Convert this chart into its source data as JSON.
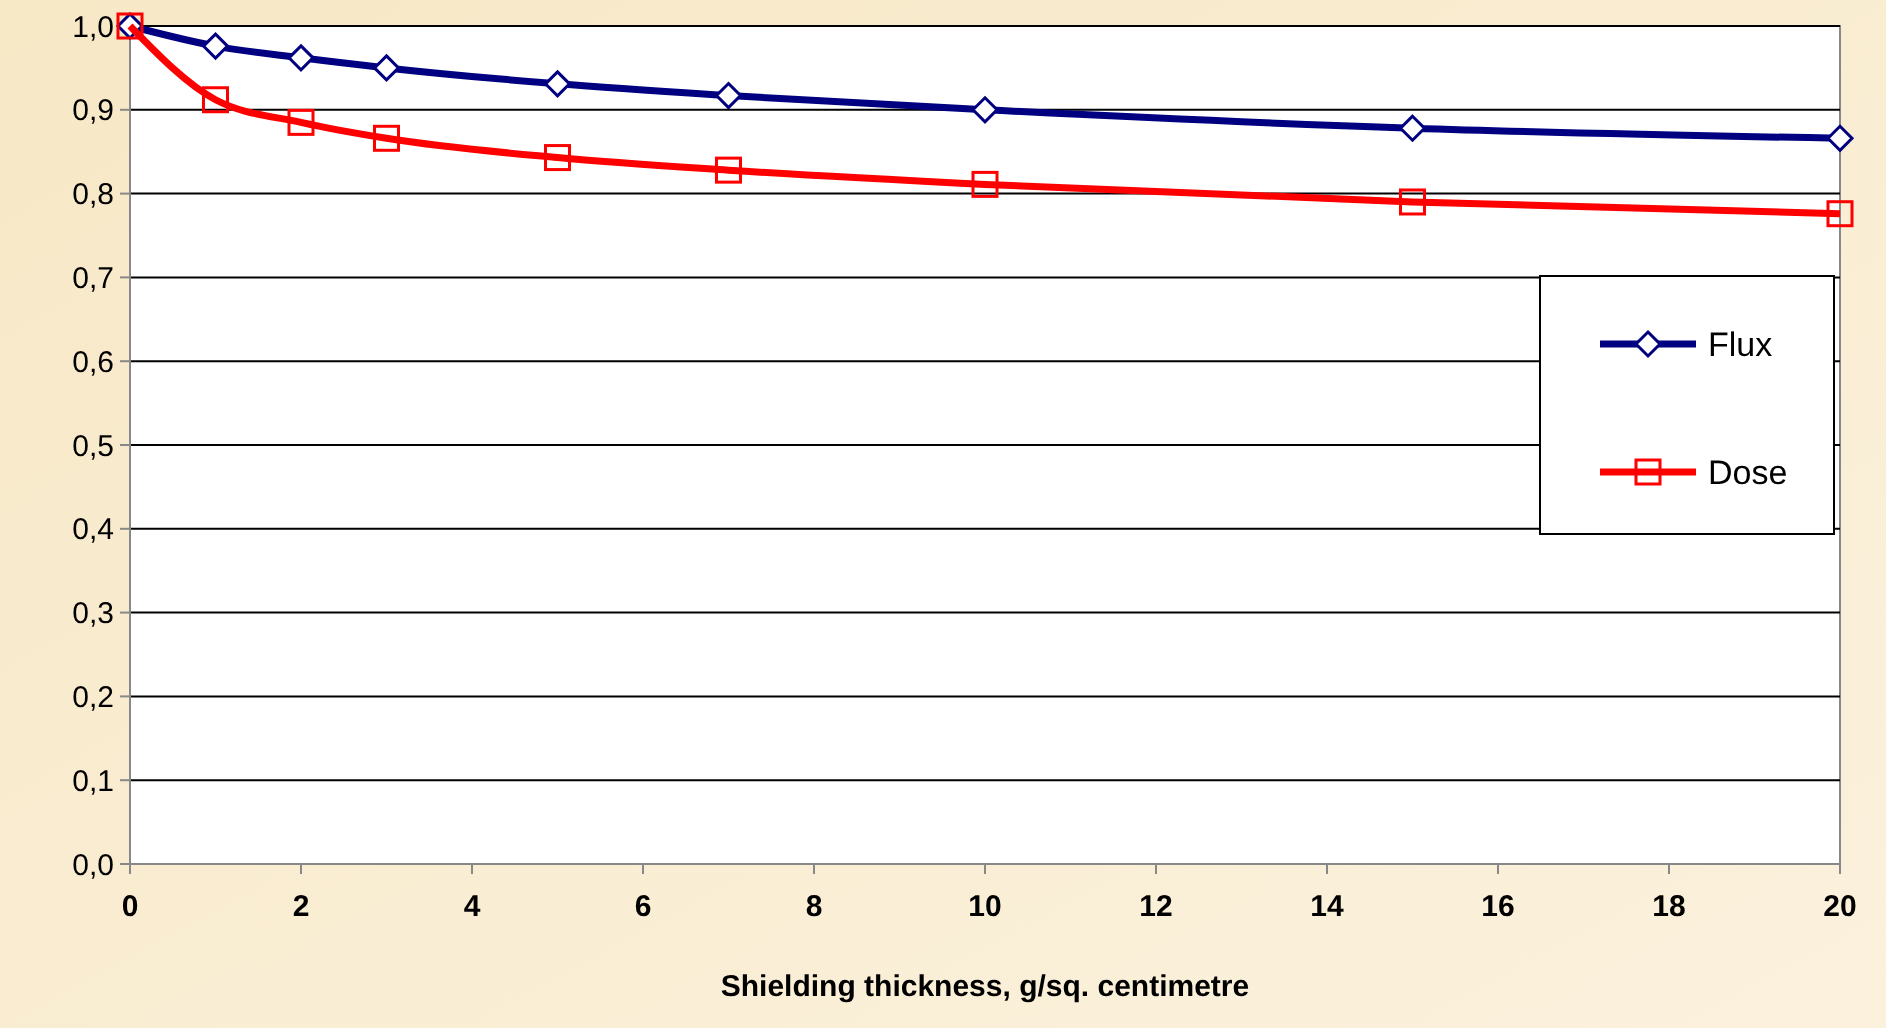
{
  "chart_data": {
    "type": "line",
    "xlabel": "Shielding thickness, g/sq. centimetre",
    "x": [
      0,
      1,
      2,
      3,
      5,
      7,
      10,
      15,
      20
    ],
    "series": [
      {
        "name": "Flux",
        "color": "#000080",
        "marker": "diamond",
        "values": [
          1.0,
          0.976,
          0.962,
          0.95,
          0.931,
          0.917,
          0.9,
          0.878,
          0.866
        ]
      },
      {
        "name": "Dose",
        "color": "#ff0000",
        "marker": "square",
        "values": [
          1.0,
          0.912,
          0.885,
          0.866,
          0.843,
          0.828,
          0.811,
          0.79,
          0.776
        ]
      }
    ],
    "xlim": [
      0,
      20
    ],
    "xticks": [
      0,
      2,
      4,
      6,
      8,
      10,
      12,
      14,
      16,
      18,
      20
    ],
    "ylim": [
      0,
      1
    ],
    "yticks": [
      {
        "value": 0,
        "label": "0,0"
      },
      {
        "value": 0.1,
        "label": "0,1"
      },
      {
        "value": 0.2,
        "label": "0,2"
      },
      {
        "value": 0.3,
        "label": "0,3"
      },
      {
        "value": 0.4,
        "label": "0,4"
      },
      {
        "value": 0.5,
        "label": "0,5"
      },
      {
        "value": 0.6,
        "label": "0,6"
      },
      {
        "value": 0.7,
        "label": "0,7"
      },
      {
        "value": 0.8,
        "label": "0,8"
      },
      {
        "value": 0.9,
        "label": "0,9"
      },
      {
        "value": 1,
        "label": "1,0"
      }
    ],
    "grid": "y",
    "legend": "right",
    "line_style": "solid"
  }
}
